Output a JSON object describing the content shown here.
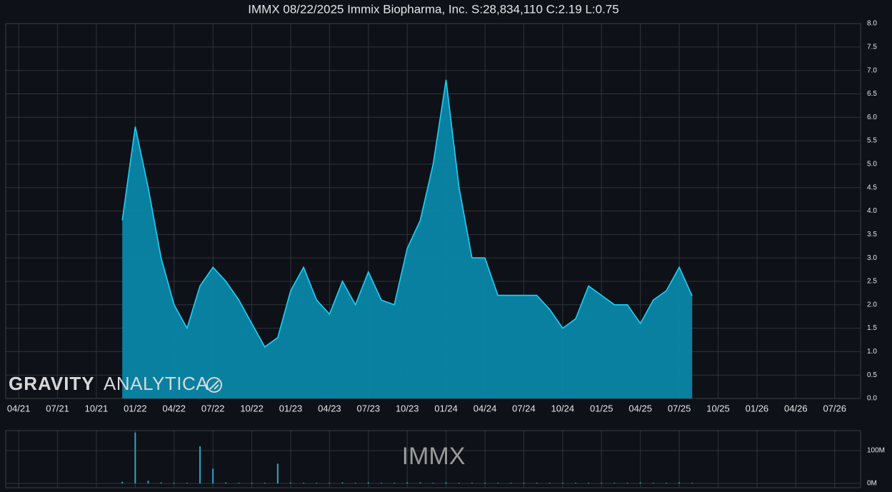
{
  "chart_data": [
    {
      "type": "area",
      "title": "IMMX 08/22/2025 Immix Biopharma, Inc. S:28,834,110 C:2.19 L:0.75",
      "watermark": [
        "GRAVITY",
        "ANALYTICA"
      ],
      "x": [
        "12/21",
        "01/22",
        "02/22",
        "03/22",
        "04/22",
        "05/22",
        "06/22",
        "07/22",
        "08/22",
        "09/22",
        "10/22",
        "11/22",
        "12/22",
        "01/23",
        "02/23",
        "03/23",
        "04/23",
        "05/23",
        "06/23",
        "07/23",
        "08/23",
        "09/23",
        "10/23",
        "11/23",
        "12/23",
        "01/24",
        "02/24",
        "03/24",
        "04/24",
        "05/24",
        "06/24",
        "07/24",
        "08/24",
        "09/24",
        "10/24",
        "11/24",
        "12/24",
        "01/25",
        "02/25",
        "03/25",
        "04/25",
        "05/25",
        "06/25",
        "07/25",
        "08/25"
      ],
      "values": [
        3.8,
        5.8,
        4.5,
        3.0,
        2.0,
        1.5,
        2.4,
        2.8,
        2.5,
        2.1,
        1.6,
        1.1,
        1.3,
        2.3,
        2.8,
        2.1,
        1.8,
        2.5,
        2.0,
        2.7,
        2.1,
        2.0,
        3.2,
        3.8,
        5.0,
        6.8,
        4.5,
        3.0,
        3.0,
        2.2,
        2.2,
        2.2,
        2.2,
        1.9,
        1.5,
        1.7,
        2.4,
        2.2,
        2.0,
        2.0,
        1.6,
        2.1,
        2.3,
        2.8,
        2.19
      ],
      "color": "#1fd0f5",
      "fill": "#0a87a8",
      "xlim": [
        "03/21",
        "09/26"
      ],
      "xticks": [
        "04/21",
        "07/21",
        "10/21",
        "01/22",
        "04/22",
        "07/22",
        "10/22",
        "01/23",
        "04/23",
        "07/23",
        "10/23",
        "01/24",
        "04/24",
        "07/24",
        "10/24",
        "01/25",
        "04/25",
        "07/25",
        "10/25",
        "01/26",
        "04/26",
        "07/26"
      ],
      "ylim": [
        0,
        8
      ],
      "yticks": [
        {
          "value": 0,
          "label": "0.0"
        },
        0.5,
        {
          "value": 1,
          "label": "1.0"
        },
        1.5,
        {
          "value": 2,
          "label": "2.0"
        },
        2.5,
        {
          "value": 3,
          "label": "3.0"
        },
        3.5,
        {
          "value": 4,
          "label": "4.0"
        },
        4.5,
        {
          "value": 5,
          "label": "5.0"
        },
        5.5,
        {
          "value": 6,
          "label": "6.0"
        },
        6.5,
        {
          "value": 7,
          "label": "7.0"
        },
        7.5,
        {
          "value": 8,
          "label": "8.0"
        }
      ],
      "grid": true
    },
    {
      "type": "bar",
      "label": "IMMX",
      "x": [
        "12/21",
        "01/22",
        "02/22",
        "03/22",
        "04/22",
        "05/22",
        "06/22",
        "07/22",
        "08/22",
        "09/22",
        "10/22",
        "11/22",
        "12/22",
        "01/23",
        "02/23",
        "03/23",
        "04/23",
        "05/23",
        "06/23",
        "07/23",
        "08/23",
        "09/23",
        "10/23",
        "11/23",
        "12/23",
        "01/24",
        "02/24",
        "03/24",
        "04/24",
        "05/24",
        "06/24",
        "07/24",
        "08/24",
        "09/24",
        "10/24",
        "11/24",
        "12/24",
        "01/25",
        "02/25",
        "03/25",
        "04/25",
        "05/25",
        "06/25",
        "07/25",
        "08/25"
      ],
      "values": [
        5,
        155,
        8,
        3,
        2,
        2,
        113,
        45,
        3,
        2,
        2,
        2,
        60,
        3,
        2,
        2,
        2,
        3,
        2,
        3,
        2,
        2,
        3,
        3,
        2,
        3,
        2,
        2,
        2,
        2,
        2,
        2,
        2,
        2,
        2,
        2,
        2,
        2,
        2,
        2,
        3,
        2,
        2,
        3,
        2
      ],
      "color": "#2aa7c4",
      "xlim": [
        "03/21",
        "09/26"
      ],
      "ylim": [
        0,
        160
      ],
      "yticks": [
        {
          "value": 0,
          "label": "0M"
        },
        {
          "value": 100,
          "label": "100M"
        }
      ],
      "grid": true
    }
  ]
}
